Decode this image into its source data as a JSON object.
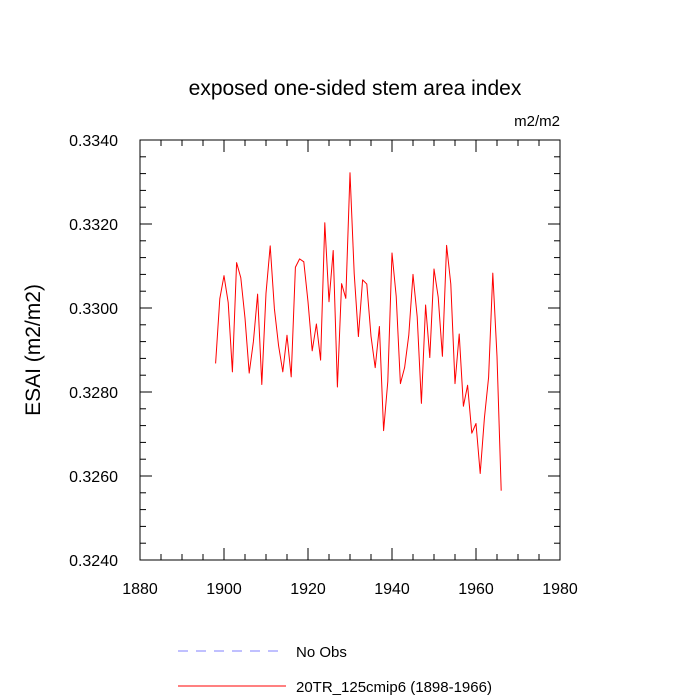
{
  "chart_data": {
    "type": "line",
    "title": "exposed one-sided stem area index",
    "units": "m2/m2",
    "ylabel": "ESAI  (m2/m2)",
    "xlabel": "",
    "xlim": [
      1880,
      1980
    ],
    "ylim": [
      0.324,
      0.334
    ],
    "x_ticks": [
      1880,
      1900,
      1920,
      1940,
      1960,
      1980
    ],
    "y_ticks": [
      0.324,
      0.326,
      0.328,
      0.33,
      0.332,
      0.334
    ],
    "x_tick_labels": [
      "1880",
      "1900",
      "1920",
      "1940",
      "1960",
      "1980"
    ],
    "y_tick_labels": [
      "0.3240",
      "0.3260",
      "0.3280",
      "0.3300",
      "0.3320",
      "0.3340"
    ],
    "grid": false,
    "legend_position": "bottom",
    "series": [
      {
        "name": "No Obs",
        "color": "#8080ff",
        "style": "dashed",
        "x": [],
        "values": []
      },
      {
        "name": "20TR_125cmip6 (1898-1966)",
        "color": "#ff0000",
        "style": "solid",
        "x": [
          1898,
          1899,
          1900,
          1901,
          1902,
          1903,
          1904,
          1905,
          1906,
          1907,
          1908,
          1909,
          1910,
          1911,
          1912,
          1913,
          1914,
          1915,
          1916,
          1917,
          1918,
          1919,
          1920,
          1921,
          1922,
          1923,
          1924,
          1925,
          1926,
          1927,
          1928,
          1929,
          1930,
          1931,
          1932,
          1933,
          1934,
          1935,
          1936,
          1937,
          1938,
          1939,
          1940,
          1941,
          1942,
          1943,
          1944,
          1945,
          1946,
          1947,
          1948,
          1949,
          1950,
          1951,
          1952,
          1953,
          1954,
          1955,
          1956,
          1957,
          1958,
          1959,
          1960,
          1961,
          1962,
          1963,
          1964,
          1965,
          1966
        ],
        "values": [
          0.32868,
          0.33022,
          0.33077,
          0.33013,
          0.32848,
          0.33108,
          0.33072,
          0.32976,
          0.32845,
          0.3292,
          0.33033,
          0.32818,
          0.33035,
          0.33148,
          0.32998,
          0.3291,
          0.32848,
          0.32935,
          0.32836,
          0.33097,
          0.33117,
          0.3311,
          0.33015,
          0.32898,
          0.32962,
          0.32876,
          0.33203,
          0.33015,
          0.33137,
          0.32812,
          0.33058,
          0.33023,
          0.33322,
          0.33082,
          0.32932,
          0.33067,
          0.33057,
          0.32933,
          0.32858,
          0.32956,
          0.32708,
          0.32825,
          0.33131,
          0.33028,
          0.3282,
          0.32858,
          0.32936,
          0.3308,
          0.32979,
          0.32773,
          0.33007,
          0.32882,
          0.33093,
          0.33026,
          0.32885,
          0.33149,
          0.33057,
          0.3282,
          0.32938,
          0.32766,
          0.32816,
          0.32702,
          0.32725,
          0.32606,
          0.32738,
          0.32835,
          0.33083,
          0.32885,
          0.32565
        ]
      }
    ]
  }
}
